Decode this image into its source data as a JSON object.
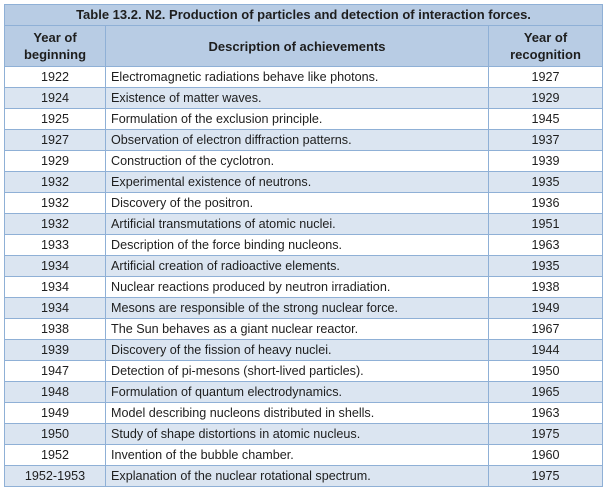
{
  "table": {
    "title": "Table 13.2. N2. Production of particles and detection of interaction forces.",
    "headers": {
      "year_line1": "Year of",
      "year_line2": "beginning",
      "description": "Description of achievements",
      "recognition_line1": "Year of",
      "recognition_line2": "recognition"
    },
    "rows": [
      {
        "year": "1922",
        "description": "Electromagnetic radiations behave like photons.",
        "recognition": "1927"
      },
      {
        "year": "1924",
        "description": "Existence of matter waves.",
        "recognition": "1929"
      },
      {
        "year": "1925",
        "description": "Formulation of the exclusion principle.",
        "recognition": "1945"
      },
      {
        "year": "1927",
        "description": "Observation of electron diffraction patterns.",
        "recognition": "1937"
      },
      {
        "year": "1929",
        "description": "Construction of the cyclotron.",
        "recognition": "1939"
      },
      {
        "year": "1932",
        "description": "Experimental existence of neutrons.",
        "recognition": "1935"
      },
      {
        "year": "1932",
        "description": "Discovery of the positron.",
        "recognition": "1936"
      },
      {
        "year": "1932",
        "description": "Artificial transmutations of atomic nuclei.",
        "recognition": "1951"
      },
      {
        "year": "1933",
        "description": "Description of the force binding nucleons.",
        "recognition": "1963"
      },
      {
        "year": "1934",
        "description": "Artificial creation of radioactive elements.",
        "recognition": "1935"
      },
      {
        "year": "1934",
        "description": "Nuclear reactions produced by neutron irradiation.",
        "recognition": "1938"
      },
      {
        "year": "1934",
        "description": "Mesons are responsible of the strong nuclear force.",
        "recognition": "1949"
      },
      {
        "year": "1938",
        "description": "The Sun behaves as a giant nuclear reactor.",
        "recognition": "1967"
      },
      {
        "year": "1939",
        "description": "Discovery of the fission of heavy nuclei.",
        "recognition": "1944"
      },
      {
        "year": "1947",
        "description": "Detection of pi-mesons (short-lived particles).",
        "recognition": "1950"
      },
      {
        "year": "1948",
        "description": "Formulation of quantum electrodynamics.",
        "recognition": "1965"
      },
      {
        "year": "1949",
        "description": "Model describing nucleons distributed in shells.",
        "recognition": "1963"
      },
      {
        "year": "1950",
        "description": "Study of shape distortions in atomic nucleus.",
        "recognition": "1975"
      },
      {
        "year": "1952",
        "description": "Invention of the bubble chamber.",
        "recognition": "1960"
      },
      {
        "year": "1952-1953",
        "description": "Explanation of the nuclear rotational spectrum.",
        "recognition": "1975"
      }
    ]
  },
  "colors": {
    "header_bg": "#b8cce4",
    "band_bg": "#dbe5f1",
    "border": "#8fb0d6"
  }
}
